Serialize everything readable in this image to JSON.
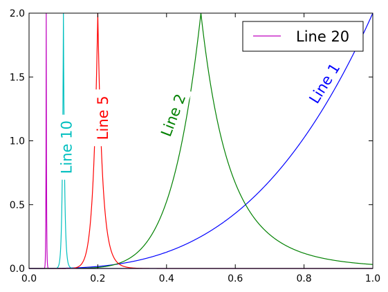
{
  "chart_data": {
    "type": "line",
    "title": "",
    "xlabel": "",
    "ylabel": "",
    "xlim": [
      0,
      1
    ],
    "ylim": [
      0,
      2
    ],
    "x_ticks": [
      "0.0",
      "0.2",
      "0.4",
      "0.6",
      "0.8",
      "1.0"
    ],
    "y_ticks": [
      "0.0",
      "0.5",
      "1.0",
      "1.5",
      "2.0"
    ],
    "grid": false,
    "series": [
      {
        "name": "Line 1",
        "color": "#0000ff",
        "peak_x": 1.0,
        "steepness": 1,
        "points": [
          [
            0,
            0
          ],
          [
            0.1,
            0.002
          ],
          [
            0.2,
            0.016
          ],
          [
            0.3,
            0.054
          ],
          [
            0.4,
            0.128
          ],
          [
            0.5,
            0.25
          ],
          [
            0.6,
            0.432
          ],
          [
            0.7,
            0.686
          ],
          [
            0.8,
            1.024
          ],
          [
            0.9,
            1.458
          ],
          [
            1.0,
            2.0
          ]
        ],
        "inline_label": {
          "text": "Line 1",
          "x": 0.86,
          "y": 1.45,
          "angle_deg": -58
        }
      },
      {
        "name": "Line 2",
        "color": "#008000",
        "peak_x": 0.5,
        "steepness": 2,
        "points": [
          [
            0,
            0
          ],
          [
            0.1,
            0.016
          ],
          [
            0.2,
            0.128
          ],
          [
            0.3,
            0.432
          ],
          [
            0.4,
            1.024
          ],
          [
            0.5,
            2.0
          ],
          [
            0.6,
            1.157
          ],
          [
            0.7,
            0.729
          ],
          [
            0.8,
            0.488
          ],
          [
            0.9,
            0.343
          ],
          [
            1.0,
            0.062
          ]
        ],
        "inline_label": {
          "text": "Line 2",
          "x": 0.42,
          "y": 1.2,
          "angle_deg": -69
        }
      },
      {
        "name": "Line 5",
        "color": "#ff0000",
        "peak_x": 0.2,
        "steepness": 5,
        "points": [
          [
            0,
            0
          ],
          [
            0.1,
            0.0
          ],
          [
            0.15,
            0.047
          ],
          [
            0.2,
            2.0
          ],
          [
            0.25,
            0.65
          ],
          [
            0.3,
            0.26
          ],
          [
            0.4,
            0.062
          ],
          [
            0.5,
            0.02
          ],
          [
            1.0,
            0.0
          ]
        ],
        "inline_label": {
          "text": "Line 5",
          "x": 0.215,
          "y": 1.18,
          "angle_deg": -90
        }
      },
      {
        "name": "Line 10",
        "color": "#00bfbf",
        "peak_x": 0.1,
        "steepness": 10,
        "points": [
          [
            0,
            0
          ],
          [
            0.05,
            0.002
          ],
          [
            0.08,
            0.21
          ],
          [
            0.1,
            2.0
          ],
          [
            0.12,
            0.32
          ],
          [
            0.15,
            0.035
          ],
          [
            0.2,
            0.002
          ],
          [
            1.0,
            0.0
          ]
        ],
        "inline_label": {
          "text": "Line 10",
          "x": 0.11,
          "y": 0.95,
          "angle_deg": -90
        }
      },
      {
        "name": "Line 20",
        "color": "#bf00bf",
        "peak_x": 0.05,
        "steepness": 20,
        "points": [
          [
            0,
            0
          ],
          [
            0.03,
            0.0
          ],
          [
            0.045,
            0.25
          ],
          [
            0.05,
            2.0
          ],
          [
            0.055,
            0.3
          ],
          [
            0.07,
            0.003
          ],
          [
            1.0,
            0.0
          ]
        ],
        "inline_label": null
      }
    ],
    "legend": {
      "placement": "top-right",
      "entries": [
        {
          "label": "Line 20",
          "color": "#bf00bf"
        }
      ]
    }
  }
}
